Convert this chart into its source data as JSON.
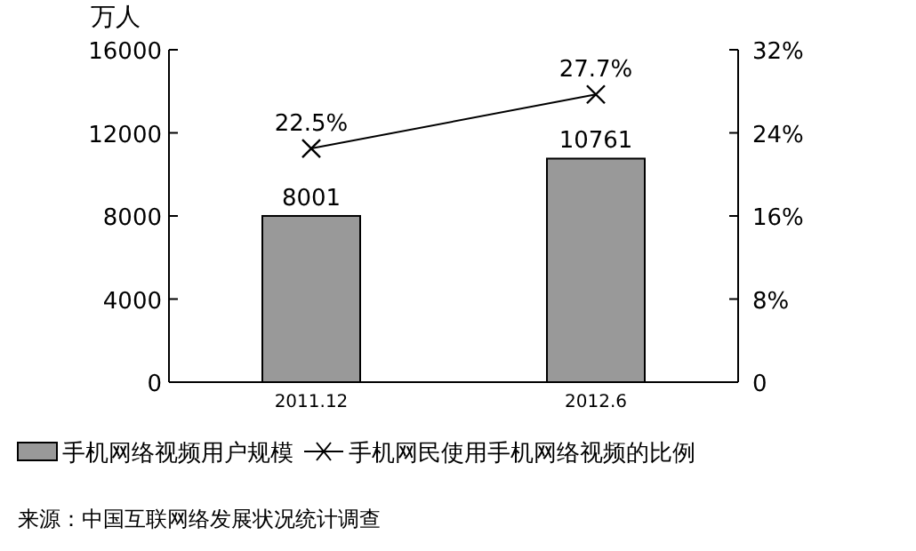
{
  "chart_data": {
    "type": "bar",
    "ylabel": "万人",
    "categories": [
      "2011.12",
      "2012.6"
    ],
    "series": [
      {
        "name": "手机网络视频用户规模",
        "color": "#999999",
        "values": [
          8001,
          10761
        ],
        "value_labels": [
          "8001",
          "10761"
        ]
      },
      {
        "name": "手机网民使用手机网络视频的比例",
        "type": "line",
        "axis": "y2",
        "color": "#000000",
        "marker": "cross",
        "values": [
          22.5,
          27.7
        ],
        "value_labels": [
          "22.5%",
          "27.7%"
        ]
      }
    ],
    "ylim": [
      0,
      16000
    ],
    "yticks": [
      0,
      4000,
      8000,
      12000,
      16000
    ],
    "y2lim": [
      0,
      32
    ],
    "y2ticks": [
      0,
      {
        "value": 8,
        "label": "8%"
      },
      {
        "value": 16,
        "label": "16%"
      },
      {
        "value": 24,
        "label": "24%"
      },
      {
        "value": 32,
        "label": "32%"
      }
    ],
    "legend": "bottom",
    "grid": false,
    "annotations": [
      "来源：中国互联网络发展状况统计调查"
    ]
  }
}
